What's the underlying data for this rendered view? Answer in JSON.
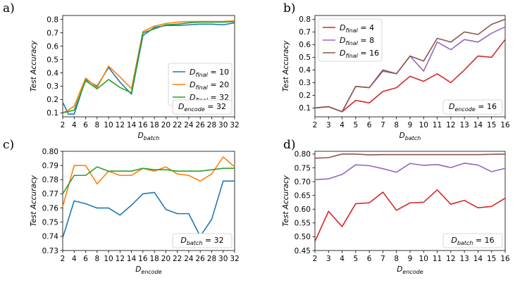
{
  "chart_data": [
    {
      "panel": "a)",
      "type": "line",
      "x": [
        2,
        3,
        4,
        6,
        8,
        10,
        12,
        14,
        16,
        18,
        20,
        22,
        24,
        26,
        28,
        30,
        32
      ],
      "series": [
        {
          "name": "D_final = 10",
          "color": "#1f77b4",
          "values": [
            0.18,
            0.09,
            0.09,
            0.35,
            0.3,
            0.44,
            0.33,
            0.24,
            0.68,
            0.74,
            0.755,
            0.755,
            0.76,
            0.765,
            0.765,
            0.76,
            0.775
          ]
        },
        {
          "name": "D_final = 20",
          "color": "#ff7f0e",
          "values": [
            0.1,
            0.12,
            0.15,
            0.36,
            0.29,
            0.45,
            0.37,
            0.28,
            0.71,
            0.75,
            0.77,
            0.78,
            0.785,
            0.785,
            0.785,
            0.785,
            0.79
          ]
        },
        {
          "name": "D_final = 32",
          "color": "#2ca02c",
          "values": [
            0.1,
            0.11,
            0.12,
            0.34,
            0.28,
            0.35,
            0.29,
            0.25,
            0.7,
            0.73,
            0.76,
            0.765,
            0.775,
            0.78,
            0.78,
            0.78,
            0.785
          ]
        }
      ],
      "xticks": [
        2,
        4,
        6,
        8,
        10,
        12,
        14,
        16,
        18,
        20,
        22,
        24,
        26,
        28,
        30,
        32
      ],
      "yticks": [
        0.1,
        0.2,
        0.3,
        0.4,
        0.5,
        0.6,
        0.7,
        0.8
      ],
      "xlim": [
        2,
        32
      ],
      "ylim": [
        0.07,
        0.83
      ],
      "xlabel_main": "D",
      "xlabel_sub": "batch",
      "ylabel": "Test Accuracy",
      "legend": [
        {
          "main": "D",
          "sub": "final",
          "rest": " = 10"
        },
        {
          "main": "D",
          "sub": "final",
          "rest": " = 20"
        },
        {
          "main": "D",
          "sub": "final",
          "rest": " = 32"
        }
      ],
      "legend_loc": "center-right",
      "annotation": {
        "main": "D",
        "sub": "encode",
        "rest": " = 32"
      }
    },
    {
      "panel": "b)",
      "type": "line",
      "x": [
        2,
        3,
        4,
        5,
        6,
        7,
        8,
        9,
        10,
        11,
        12,
        13,
        14,
        15,
        16
      ],
      "series": [
        {
          "name": "D_final = 4",
          "color": "#d62728",
          "values": [
            0.1,
            0.11,
            0.07,
            0.16,
            0.14,
            0.23,
            0.26,
            0.35,
            0.31,
            0.37,
            0.3,
            0.4,
            0.51,
            0.5,
            0.64
          ]
        },
        {
          "name": "D_final = 8",
          "color": "#9467bd",
          "values": [
            0.1,
            0.11,
            0.07,
            0.27,
            0.26,
            0.39,
            0.37,
            0.51,
            0.39,
            0.62,
            0.56,
            0.64,
            0.62,
            0.69,
            0.74
          ]
        },
        {
          "name": "D_final = 16",
          "color": "#8c564b",
          "values": [
            0.1,
            0.11,
            0.07,
            0.27,
            0.26,
            0.4,
            0.37,
            0.51,
            0.47,
            0.65,
            0.62,
            0.7,
            0.68,
            0.76,
            0.8
          ]
        }
      ],
      "xticks": [
        2,
        3,
        4,
        5,
        6,
        7,
        8,
        9,
        10,
        11,
        12,
        13,
        14,
        15,
        16
      ],
      "yticks": [
        0.1,
        0.2,
        0.3,
        0.4,
        0.5,
        0.6,
        0.7,
        0.8
      ],
      "xlim": [
        2,
        16
      ],
      "ylim": [
        0.03,
        0.83
      ],
      "xlabel_main": "D",
      "xlabel_sub": "batch",
      "ylabel": "Test Accuracy",
      "legend": [
        {
          "main": "D",
          "sub": "final",
          "rest": " = 4"
        },
        {
          "main": "D",
          "sub": "final",
          "rest": " = 8"
        },
        {
          "main": "D",
          "sub": "final",
          "rest": " = 16"
        }
      ],
      "legend_loc": "upper-left",
      "annotation": {
        "main": "D",
        "sub": "encode",
        "rest": " = 16"
      }
    },
    {
      "panel": "c)",
      "type": "line",
      "x": [
        2,
        4,
        6,
        8,
        10,
        12,
        14,
        16,
        18,
        20,
        22,
        24,
        26,
        28,
        30,
        32
      ],
      "series": [
        {
          "name": "D_final = 10",
          "color": "#1f77b4",
          "values": [
            0.739,
            0.765,
            0.763,
            0.76,
            0.76,
            0.755,
            0.762,
            0.77,
            0.771,
            0.759,
            0.756,
            0.756,
            0.74,
            0.752,
            0.779,
            0.779
          ]
        },
        {
          "name": "D_final = 20",
          "color": "#ff7f0e",
          "values": [
            0.761,
            0.79,
            0.79,
            0.777,
            0.786,
            0.783,
            0.783,
            0.788,
            0.786,
            0.789,
            0.784,
            0.783,
            0.779,
            0.784,
            0.796,
            0.789
          ]
        },
        {
          "name": "D_final = 32",
          "color": "#2ca02c",
          "values": [
            0.77,
            0.783,
            0.783,
            0.789,
            0.786,
            0.786,
            0.786,
            0.788,
            0.787,
            0.787,
            0.786,
            0.786,
            0.786,
            0.787,
            0.788,
            0.788
          ]
        }
      ],
      "xticks": [
        2,
        4,
        6,
        8,
        10,
        12,
        14,
        16,
        18,
        20,
        22,
        24,
        26,
        28,
        30,
        32
      ],
      "yticks": [
        0.73,
        0.74,
        0.75,
        0.76,
        0.77,
        0.78,
        0.79,
        0.8
      ],
      "xlim": [
        2,
        32
      ],
      "ylim": [
        0.73,
        0.8
      ],
      "xlabel_main": "D",
      "xlabel_sub": "encode",
      "ylabel": "Test Accuracy",
      "legend": [],
      "annotation": {
        "main": "D",
        "sub": "batch",
        "rest": " = 32"
      }
    },
    {
      "panel": "d)",
      "type": "line",
      "x": [
        2,
        3,
        4,
        5,
        6,
        7,
        8,
        9,
        10,
        11,
        12,
        13,
        14,
        15,
        16
      ],
      "series": [
        {
          "name": "D_final = 4",
          "color": "#d62728",
          "values": [
            0.483,
            0.592,
            0.537,
            0.62,
            0.623,
            0.662,
            0.596,
            0.623,
            0.625,
            0.67,
            0.618,
            0.632,
            0.605,
            0.61,
            0.64
          ]
        },
        {
          "name": "D_final = 8",
          "color": "#9467bd",
          "values": [
            0.707,
            0.71,
            0.726,
            0.761,
            0.758,
            0.747,
            0.734,
            0.766,
            0.759,
            0.762,
            0.751,
            0.767,
            0.76,
            0.736,
            0.748
          ]
        },
        {
          "name": "D_final = 16",
          "color": "#8c564b",
          "values": [
            0.785,
            0.787,
            0.8,
            0.8,
            0.797,
            0.798,
            0.798,
            0.798,
            0.798,
            0.798,
            0.798,
            0.798,
            0.798,
            0.799,
            0.8
          ]
        }
      ],
      "xticks": [
        2,
        3,
        4,
        5,
        6,
        7,
        8,
        9,
        10,
        11,
        12,
        13,
        14,
        15,
        16
      ],
      "yticks": [
        0.45,
        0.5,
        0.55,
        0.6,
        0.65,
        0.7,
        0.75,
        0.8
      ],
      "xlim": [
        2,
        16
      ],
      "ylim": [
        0.45,
        0.81
      ],
      "xlabel_main": "D",
      "xlabel_sub": "encode",
      "ylabel": "Test Accuracy",
      "legend": [],
      "annotation": {
        "main": "D",
        "sub": "batch",
        "rest": " = 16"
      }
    }
  ]
}
